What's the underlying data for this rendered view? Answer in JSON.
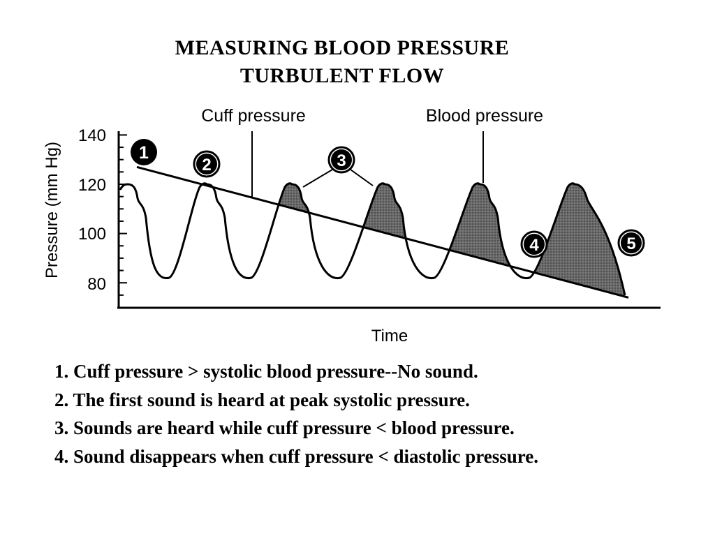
{
  "title_line1": "MEASURING  BLOOD  PRESSURE",
  "title_line2": "TURBULENT  FLOW",
  "diagram": {
    "y_axis_label": "Pressure (mm Hg)",
    "x_axis_label": "Time",
    "y_ticks": [
      "140",
      "120",
      "100",
      "80"
    ],
    "cuff_pressure_label": "Cuff pressure",
    "blood_pressure_label": "Blood pressure",
    "markers": [
      "1",
      "2",
      "3",
      "4",
      "5"
    ],
    "cuff_pressure_start_mmHg": 127,
    "cuff_pressure_end_mmHg": 74,
    "systolic_peak_mmHg": 120,
    "diastolic_trough_mmHg": 82
  },
  "notes": [
    "1.  Cuff pressure > systolic blood pressure--No sound.",
    "2.  The first sound is heard at peak systolic pressure.",
    "3.  Sounds are heard while cuff pressure < blood pressure.",
    "4.  Sound disappears when cuff pressure < diastolic pressure."
  ],
  "colors": {
    "ink": "#000000",
    "shading": "#555555",
    "background": "#ffffff"
  }
}
